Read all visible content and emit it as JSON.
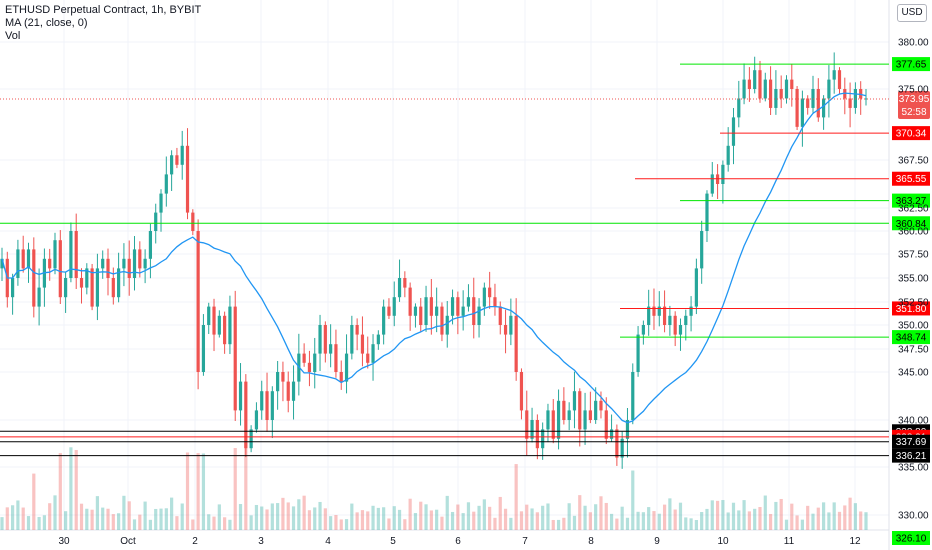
{
  "legend": {
    "title": "ETHUSD Perpetual Contract, 1h, BYBIT",
    "indicator": "MA (21, close, 0)",
    "volume": "Vol"
  },
  "currency_badge": "USD",
  "colors": {
    "up": "#26a69a",
    "down": "#ef5350",
    "ma": "#2196f3",
    "green_level": "#00e600",
    "red_level": "#ff1a1a",
    "black_level": "#000000",
    "current": "#ef5350"
  },
  "chart_data": {
    "type": "candlestick",
    "y_ticks": [
      "380.00",
      "375.00",
      "367.50",
      "362.50",
      "360.00",
      "357.50",
      "355.00",
      "352.50",
      "350.00",
      "347.50",
      "345.00",
      "340.00",
      "335.00",
      "330.00"
    ],
    "y_tick_values": [
      380,
      375,
      367.5,
      362.5,
      360,
      357.5,
      355,
      352.5,
      350,
      347.5,
      345,
      340,
      335,
      330
    ],
    "x_ticks": [
      "30",
      "Oct",
      "2",
      "3",
      "4",
      "5",
      "6",
      "7",
      "8",
      "9",
      "10",
      "11",
      "12"
    ],
    "ylim": [
      328,
      383
    ],
    "levels": [
      {
        "value": 377.65,
        "label": "377.65",
        "style": "green"
      },
      {
        "value": 370.34,
        "label": "370.34",
        "style": "red"
      },
      {
        "value": 365.55,
        "label": "365.55",
        "style": "red"
      },
      {
        "value": 363.27,
        "label": "363.27",
        "style": "green"
      },
      {
        "value": 360.84,
        "label": "360.84",
        "style": "green"
      },
      {
        "value": 351.8,
        "label": "351.80",
        "style": "red"
      },
      {
        "value": 348.74,
        "label": "348.74",
        "style": "green"
      },
      {
        "value": 338.8,
        "label": "338.80",
        "style": "black"
      },
      {
        "value": 338.21,
        "label": "338.21",
        "style": "red"
      },
      {
        "value": 337.69,
        "label": "337.69",
        "style": "black"
      },
      {
        "value": 336.21,
        "label": "336.21",
        "style": "black"
      },
      {
        "value": 326.1,
        "label": "326.10",
        "style": "green"
      }
    ],
    "current_price": {
      "value": 373.95,
      "label": "373.95",
      "countdown": "52:58"
    },
    "close_path": [
      357,
      353,
      355,
      358,
      356,
      358,
      352,
      354,
      357,
      356,
      359,
      353,
      355,
      360,
      355,
      354,
      356,
      352,
      356,
      357,
      355,
      353,
      356,
      357,
      355,
      358,
      356,
      357,
      360,
      362,
      364,
      366,
      368,
      367,
      369,
      362,
      360,
      345,
      350,
      352,
      349,
      351,
      348,
      352,
      341,
      344,
      337,
      339,
      341,
      343,
      340,
      343,
      345,
      344,
      342,
      344,
      347,
      346,
      345,
      347,
      350,
      347,
      348,
      345,
      344,
      347,
      350,
      349,
      347,
      346,
      348,
      349,
      352,
      351,
      353,
      355,
      354,
      351,
      352,
      350,
      353,
      351,
      352,
      349,
      351,
      353,
      351,
      352,
      353,
      350,
      352,
      354,
      353,
      352,
      350,
      349,
      351,
      345,
      341,
      338,
      340,
      337,
      339,
      341,
      338,
      342,
      340,
      341,
      343,
      339,
      341,
      340,
      342,
      341,
      338,
      339,
      336,
      338,
      340,
      345,
      349,
      350,
      352,
      351,
      352,
      350,
      351,
      349,
      350,
      351,
      352,
      356,
      360,
      364,
      366,
      365,
      367,
      369,
      372,
      374,
      376,
      375,
      377,
      374,
      376,
      373,
      375,
      374,
      376,
      375,
      371,
      374,
      373,
      375,
      372,
      374,
      376,
      377,
      375,
      374,
      373,
      375,
      374,
      374
    ]
  }
}
